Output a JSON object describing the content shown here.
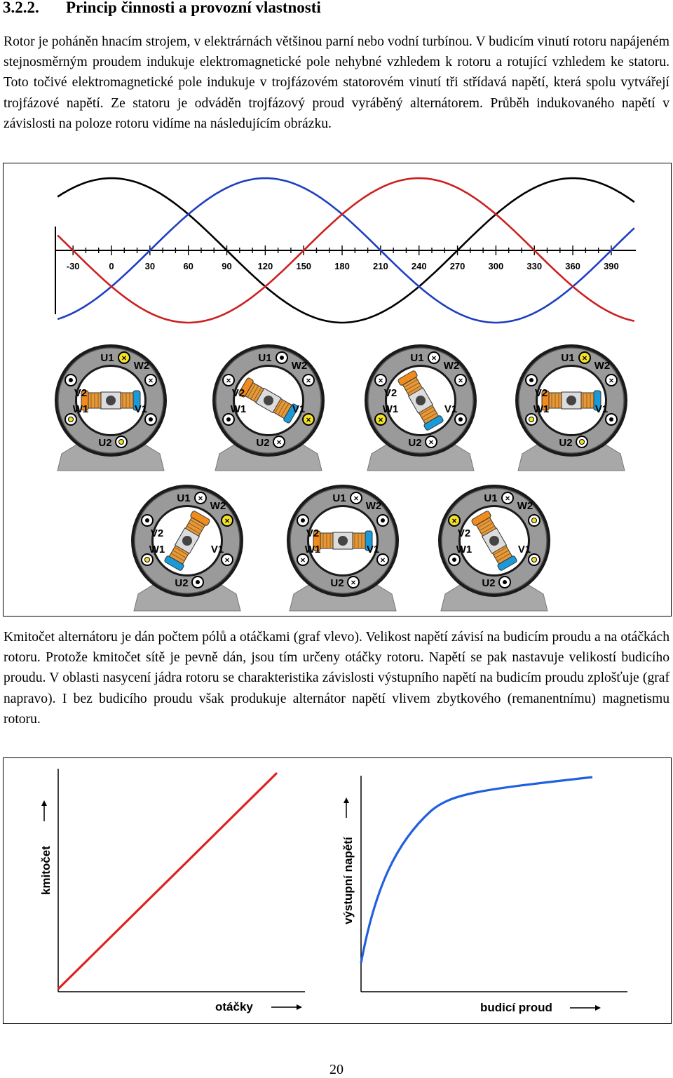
{
  "heading": {
    "number": "3.2.2.",
    "title": "Princip činnosti a provozní vlastnosti"
  },
  "paragraph1": "Rotor je poháněn hnacím strojem, v elektrárnách většinou parní nebo vodní turbínou. V budicím vinutí rotoru napájeném stejnosměrným proudem indukuje elektromagnetické pole nehybné vzhledem k rotoru a rotující vzhledem ke statoru. Toto točivé elektromagnetické pole indukuje v trojfázovém statorovém vinutí tři střídavá napětí, která spolu vytvářejí trojfázové napětí. Ze statoru je odváděn trojfázový proud vyráběný alternátorem. Průběh indukovaného napětí v závislosti na poloze rotoru vidíme na následujícím obrázku.",
  "waveform": {
    "tick_labels": [
      "-30",
      "0",
      "30",
      "60",
      "90",
      "120",
      "150",
      "180",
      "210",
      "240",
      "270",
      "300",
      "330",
      "360",
      "390"
    ],
    "colors": {
      "phase_black": "#000000",
      "phase_blue": "#1f3fbf",
      "phase_red": "#cc2020"
    }
  },
  "machine_labels": {
    "U1": "U1",
    "U2": "U2",
    "V1": "V1",
    "V2": "V2",
    "W1": "W1",
    "W2": "W2"
  },
  "machines": [
    {
      "rotor_angle": 0
    },
    {
      "rotor_angle": 30
    },
    {
      "rotor_angle": 60
    },
    {
      "rotor_angle": 0
    },
    {
      "rotor_angle": 120
    },
    {
      "rotor_angle": 0
    },
    {
      "rotor_angle": 60
    }
  ],
  "paragraph2": "Kmitočet alternátoru je dán počtem pólů a otáčkami (graf vlevo). Velikost napětí závisí na budicím proudu a na otáčkách rotoru. Protože kmitočet sítě je pevně dán, jsou tím určeny otáčky rotoru. Napětí se pak nastavuje velikostí budicího proudu. V oblasti nasycení jádra rotoru se charakteristika závislosti výstupního napětí na budicím proudu zplošťuje (graf napravo). I bez budicího proudu však produkuje alternátor napětí vlivem zbytkového (remanentnímu) magnetismu rotoru.",
  "chart_data": [
    {
      "type": "line",
      "xlabel": "otáčky",
      "ylabel": "kmitočet",
      "series": [
        {
          "x": [
            0,
            1
          ],
          "y": [
            0,
            1
          ]
        }
      ],
      "color": "#e02020"
    },
    {
      "type": "line",
      "xlabel": "budicí proud",
      "ylabel": "výstupní napětí",
      "series": [
        {
          "x": [
            0,
            0.1,
            0.2,
            0.3,
            0.4,
            0.5,
            0.6,
            0.8,
            1.0
          ],
          "y": [
            0.1,
            0.4,
            0.68,
            0.84,
            0.9,
            0.92,
            0.93,
            0.95,
            0.97
          ]
        }
      ],
      "color": "#2060e0"
    }
  ],
  "page_number": "20"
}
